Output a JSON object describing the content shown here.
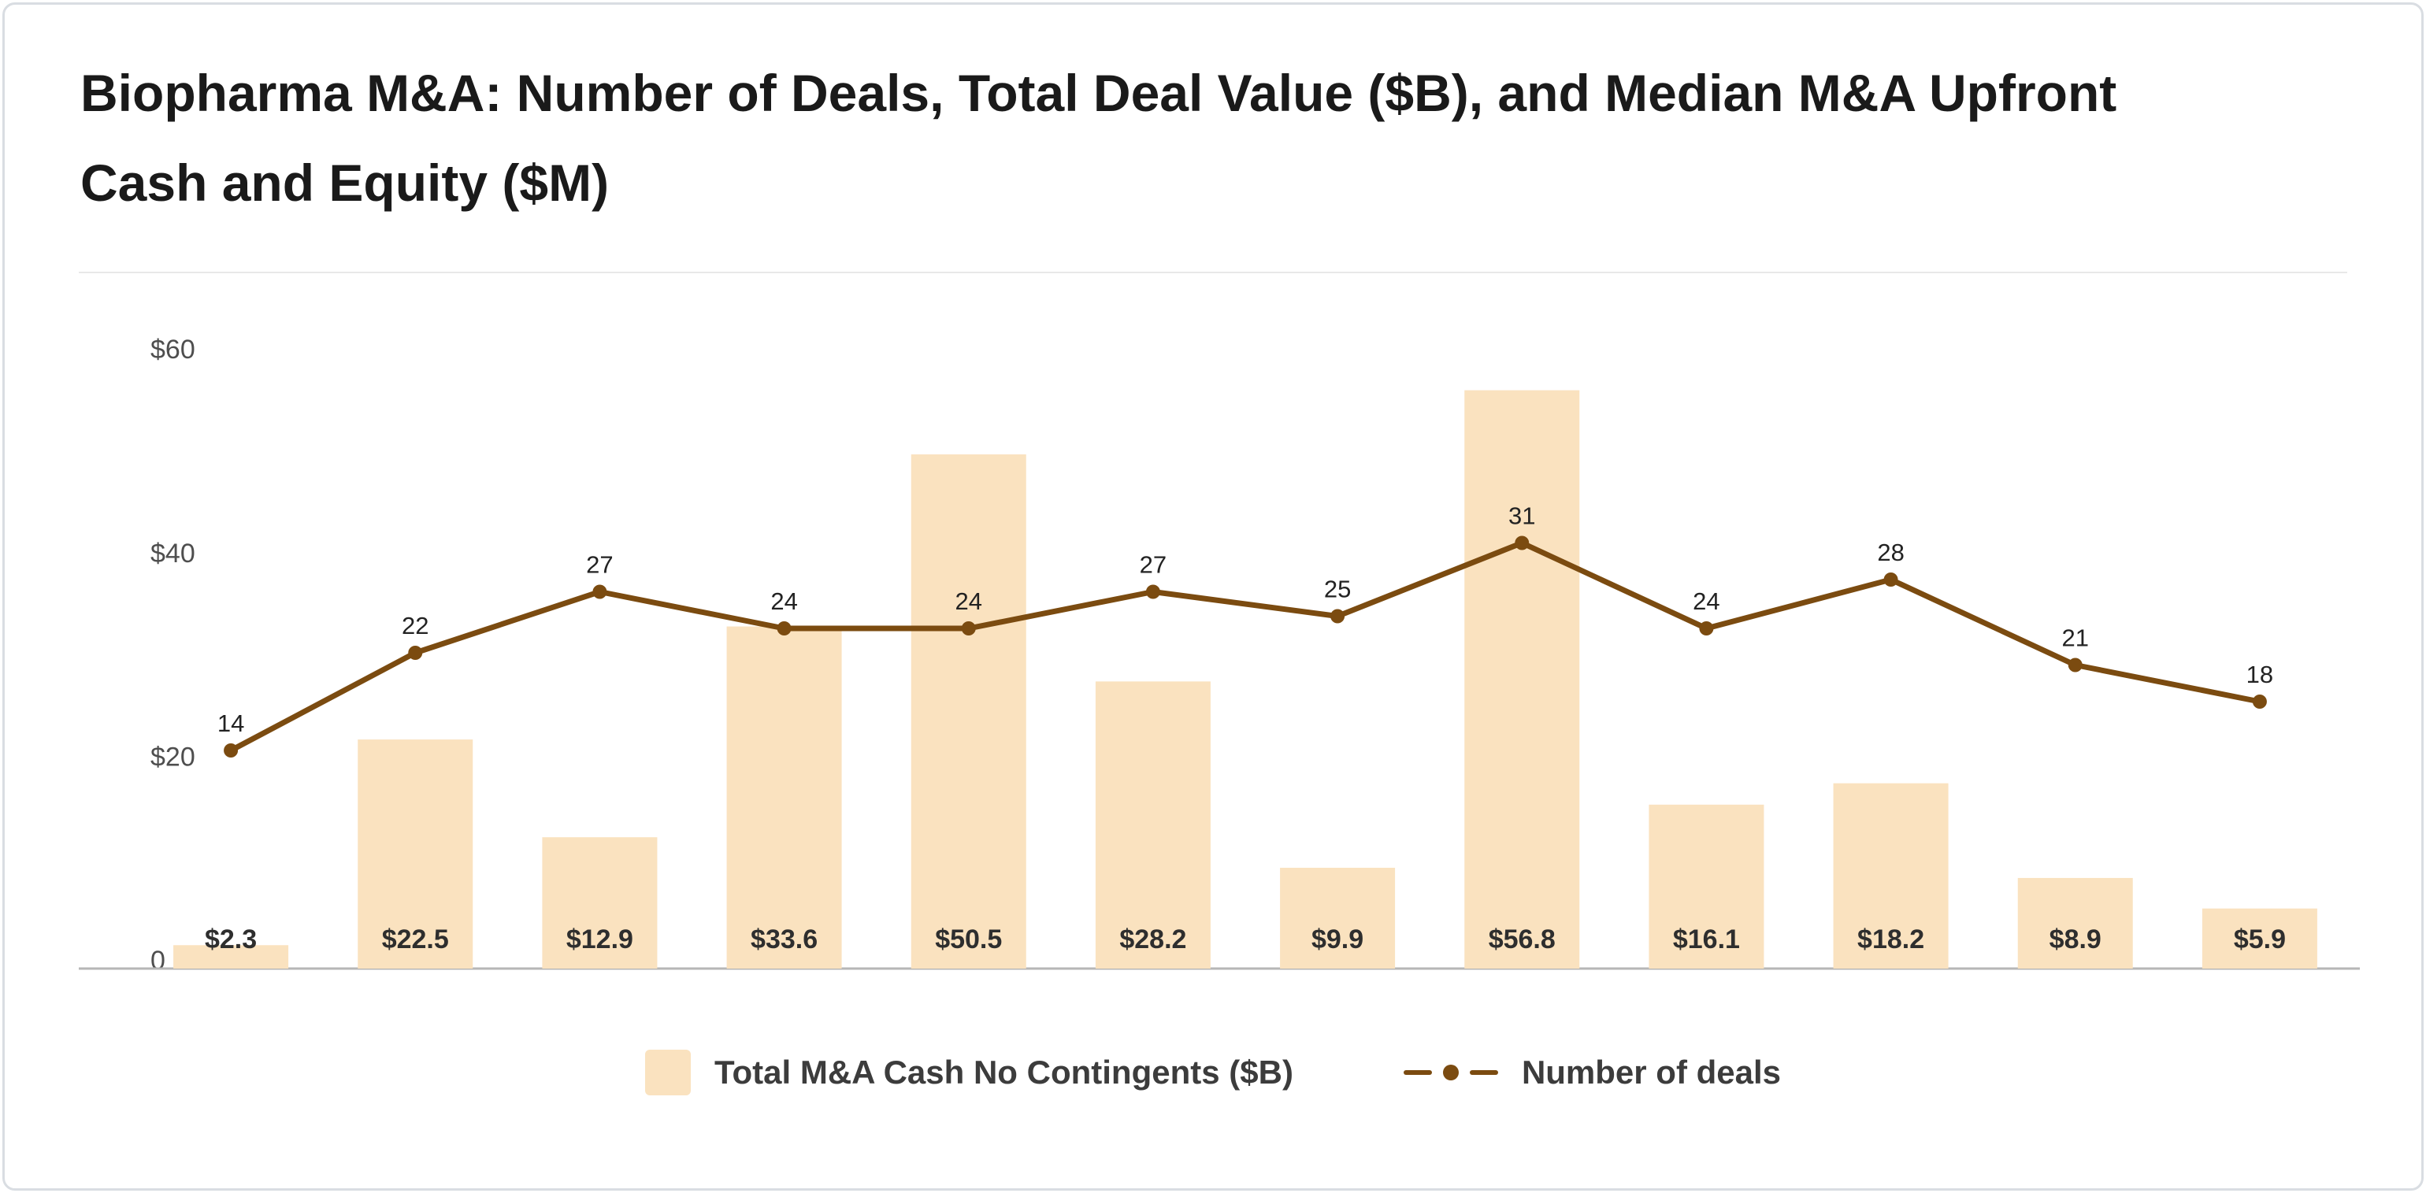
{
  "chart_data": {
    "type": "combo",
    "title": "Biopharma M&A: Number of Deals, Total Deal Value ($B), and Median M&A Upfront Cash and Equity ($M)",
    "series": [
      {
        "name": "Total M&A Cash No Contingents ($B)",
        "type": "bar",
        "color": "#FAE2BF",
        "values": [
          2.3,
          22.5,
          12.9,
          33.6,
          50.5,
          28.2,
          9.9,
          56.8,
          16.1,
          18.2,
          8.9,
          5.9
        ],
        "labels": [
          "$2.3",
          "$22.5",
          "$12.9",
          "$33.6",
          "$50.5",
          "$28.2",
          "$9.9",
          "$56.8",
          "$16.1",
          "$18.2",
          "$8.9",
          "$5.9"
        ]
      },
      {
        "name": "Number of deals",
        "type": "line",
        "color": "#7B4B10",
        "values": [
          14,
          22,
          27,
          24,
          24,
          27,
          25,
          31,
          24,
          28,
          21,
          18
        ]
      }
    ],
    "y_axis": {
      "ticks": [
        {
          "label": "$60",
          "value": 60
        },
        {
          "label": "$40",
          "value": 40
        },
        {
          "label": "$20",
          "value": 20
        },
        {
          "label": "0",
          "value": 0
        }
      ],
      "max": 60,
      "grid": false
    },
    "x_axis": {
      "labels_visible": false
    },
    "legend": {
      "position": "bottom",
      "entries": [
        "Total M&A Cash No Contingents ($B)",
        "Number of deals"
      ]
    },
    "text_colors": {
      "title": "#1a1a1a",
      "axis_tick": "#4e4e4e",
      "bar_value_label": "#2e2e2e",
      "point_label": "#222222",
      "legend_label": "#3c3c3c"
    },
    "axis_line_color": "#b6b6b6"
  }
}
